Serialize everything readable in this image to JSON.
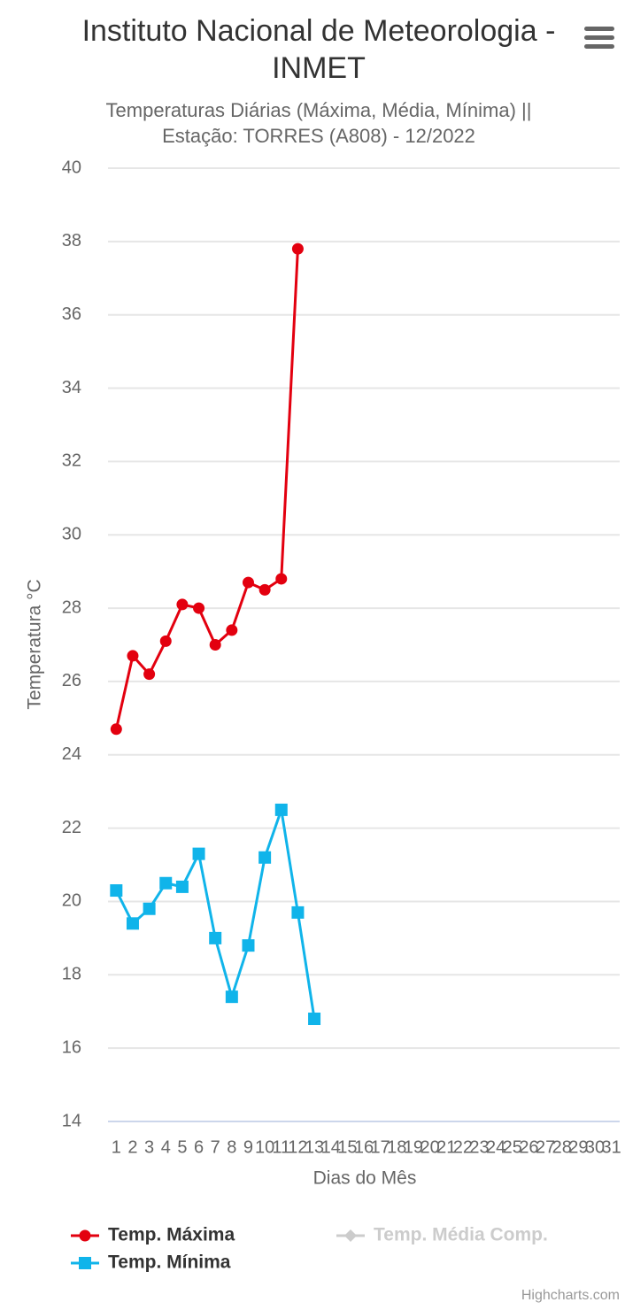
{
  "chart_data": {
    "type": "line",
    "title": "Instituto Nacional de Meteorologia - INMET",
    "subtitle": "Temperaturas Diárias (Máxima, Média, Mínima) || Estação: TORRES (A808) - 12/2022",
    "x_axis_label": "Dias do Mês",
    "y_axis_label": "Temperatura °C",
    "credits": "Highcharts.com",
    "categories": [
      "1",
      "2",
      "3",
      "4",
      "5",
      "6",
      "7",
      "8",
      "9",
      "10",
      "11",
      "12",
      "13",
      "14",
      "15",
      "16",
      "17",
      "18",
      "19",
      "20",
      "21",
      "22",
      "23",
      "24",
      "25",
      "26",
      "27",
      "28",
      "29",
      "30",
      "31"
    ],
    "ylim": [
      14,
      40
    ],
    "yticks": [
      14,
      16,
      18,
      20,
      22,
      24,
      26,
      28,
      30,
      32,
      34,
      36,
      38,
      40
    ],
    "grid": true,
    "series": [
      {
        "name": "Temp. Máxima",
        "color": "#e3000f",
        "marker": "circle",
        "visible": true,
        "values": [
          24.7,
          26.7,
          26.2,
          27.1,
          28.1,
          28.0,
          27.0,
          27.4,
          28.7,
          28.5,
          28.8,
          37.8,
          null,
          null,
          null,
          null,
          null,
          null,
          null,
          null,
          null,
          null,
          null,
          null,
          null,
          null,
          null,
          null,
          null,
          null,
          null
        ]
      },
      {
        "name": "Temp. Média Comp.",
        "color": "#cccccc",
        "marker": "diamond",
        "visible": false,
        "values": [
          null,
          null,
          null,
          null,
          null,
          null,
          null,
          null,
          null,
          null,
          null,
          null,
          null,
          null,
          null,
          null,
          null,
          null,
          null,
          null,
          null,
          null,
          null,
          null,
          null,
          null,
          null,
          null,
          null,
          null,
          null
        ]
      },
      {
        "name": "Temp. Mínima",
        "color": "#10b4ea",
        "marker": "square",
        "visible": true,
        "values": [
          20.3,
          19.4,
          19.8,
          20.5,
          20.4,
          21.3,
          19.0,
          17.4,
          18.8,
          21.2,
          22.5,
          19.7,
          16.8,
          null,
          null,
          null,
          null,
          null,
          null,
          null,
          null,
          null,
          null,
          null,
          null,
          null,
          null,
          null,
          null,
          null,
          null
        ]
      }
    ]
  }
}
